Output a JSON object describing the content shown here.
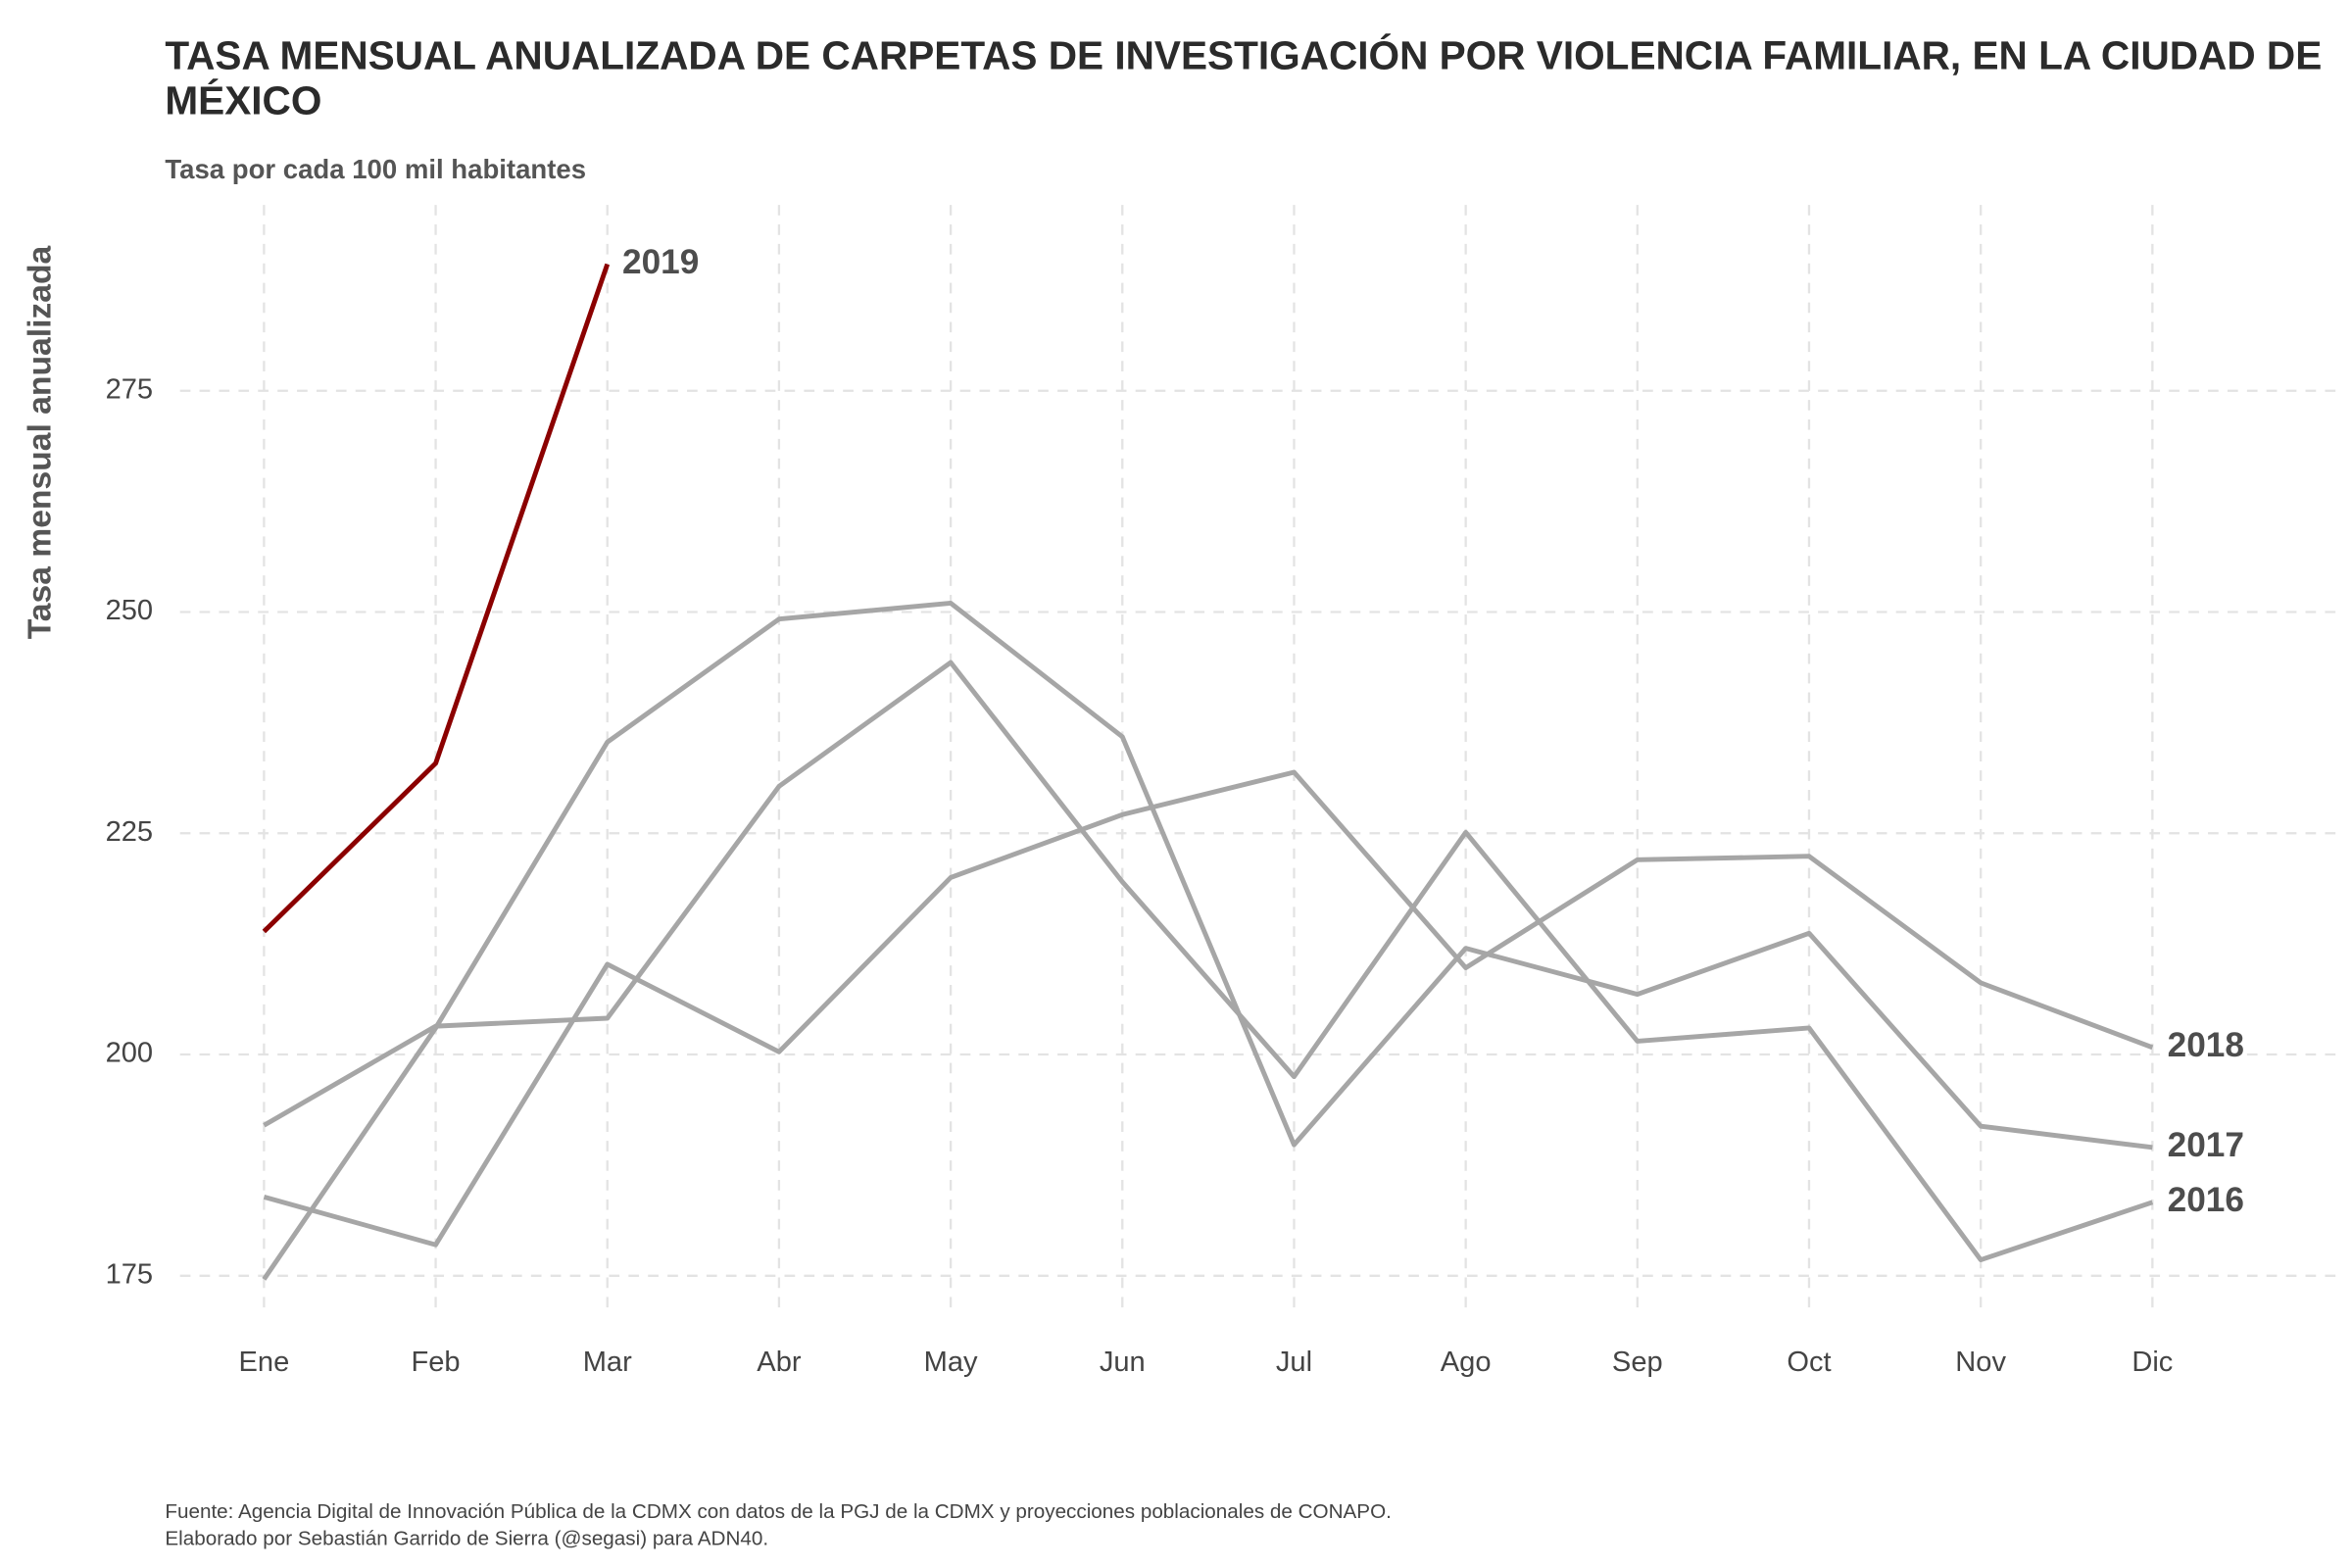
{
  "chart_data": {
    "type": "line",
    "title": "TASA MENSUAL ANUALIZADA DE CARPETAS DE INVESTIGACIÓN POR VIOLENCIA FAMILIAR, EN LA CIUDAD DE MÉXICO",
    "subtitle": "Tasa por cada 100 mil habitantes",
    "y_label": "Tasa mensual anualizada",
    "source": "Fuente: Agencia Digital de Innovación Pública de la CDMX con datos de la PGJ de la CDMX y proyecciones poblacionales de CONAPO.",
    "credit": "Elaborado por Sebastián Garrido de Sierra (@segasi) para ADN40.",
    "categories": [
      "Ene",
      "Feb",
      "Mar",
      "Abr",
      "May",
      "Jun",
      "Jul",
      "Ago",
      "Sep",
      "Oct",
      "Nov",
      "Dic"
    ],
    "series": [
      {
        "name": "2016",
        "color": "#a6a6a6",
        "values": [
          192,
          203.2,
          204.1,
          230.3,
          244.3,
          219.5,
          197.5,
          225.1,
          201.5,
          203,
          176.8,
          183.3
        ]
      },
      {
        "name": "2017",
        "color": "#a6a6a6",
        "values": [
          174.6,
          203,
          235.3,
          249.2,
          251,
          235.9,
          189.8,
          212,
          206.8,
          213.7,
          191.9,
          189.5
        ]
      },
      {
        "name": "2018",
        "color": "#a6a6a6",
        "values": [
          183.9,
          178.5,
          210.2,
          200.3,
          220,
          227.1,
          231.9,
          209.8,
          222,
          222.4,
          208.1,
          200.8
        ]
      },
      {
        "name": "2019",
        "color": "#8b0000",
        "values": [
          213.9,
          232.9,
          289.3,
          null,
          null,
          null,
          null,
          null,
          null,
          null,
          null,
          null
        ]
      }
    ],
    "ylim": [
      171,
      296
    ],
    "yticks": [
      175,
      200,
      225,
      250,
      275
    ],
    "grid": true
  }
}
